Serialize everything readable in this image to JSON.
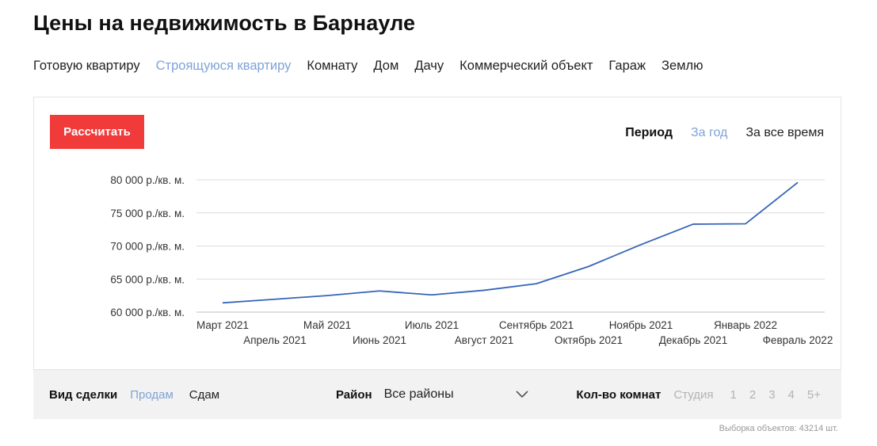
{
  "page": {
    "title": "Цены на недвижимость в Барнауле"
  },
  "property_tabs": [
    {
      "label": "Готовую квартиру",
      "active": false
    },
    {
      "label": "Строящуюся квартиру",
      "active": true
    },
    {
      "label": "Комнату",
      "active": false
    },
    {
      "label": "Дом",
      "active": false
    },
    {
      "label": "Дачу",
      "active": false
    },
    {
      "label": "Коммерческий объект",
      "active": false
    },
    {
      "label": "Гараж",
      "active": false
    },
    {
      "label": "Землю",
      "active": false
    }
  ],
  "toolbar": {
    "calc_label": "Рассчитать",
    "period_label": "Период",
    "period_options": [
      {
        "label": "За год",
        "active": true
      },
      {
        "label": "За все время",
        "active": false
      }
    ]
  },
  "chart_data": {
    "type": "line",
    "categories": [
      "Март 2021",
      "Апрель 2021",
      "Май 2021",
      "Июнь 2021",
      "Июль 2021",
      "Август 2021",
      "Сентябрь 2021",
      "Октябрь 2021",
      "Ноябрь 2021",
      "Декабрь 2021",
      "Январь 2022",
      "Февраль 2022"
    ],
    "series": [
      {
        "values": [
          61400,
          61950,
          62500,
          63200,
          62600,
          63300,
          64300,
          66900,
          70200,
          73300,
          73350,
          79600
        ],
        "color": "#3565b8"
      }
    ],
    "y_ticks": [
      {
        "value": 60000,
        "label": "60 000 р./кв. м."
      },
      {
        "value": 65000,
        "label": "65 000 р./кв. м."
      },
      {
        "value": 70000,
        "label": "70 000 р./кв. м."
      },
      {
        "value": 75000,
        "label": "75 000 р./кв. м."
      },
      {
        "value": 80000,
        "label": "80 000 р./кв. м."
      }
    ],
    "ylim": [
      60000,
      80000
    ],
    "grid": true,
    "legend": false
  },
  "filters": {
    "deal_label": "Вид сделки",
    "deal_options": [
      {
        "label": "Продам",
        "active": true
      },
      {
        "label": "Сдам",
        "active": false
      }
    ],
    "district_label": "Район",
    "district_value": "Все районы",
    "rooms_label": "Кол-во комнат",
    "rooms_options": [
      "Студия",
      "1",
      "2",
      "3",
      "4",
      "5+"
    ]
  },
  "footer": {
    "count_text": "Выборка объектов: 43214 шт."
  },
  "colors": {
    "accent_red": "#f13b3b",
    "link_blue": "#7ea3d8",
    "line_blue": "#3565b8"
  }
}
